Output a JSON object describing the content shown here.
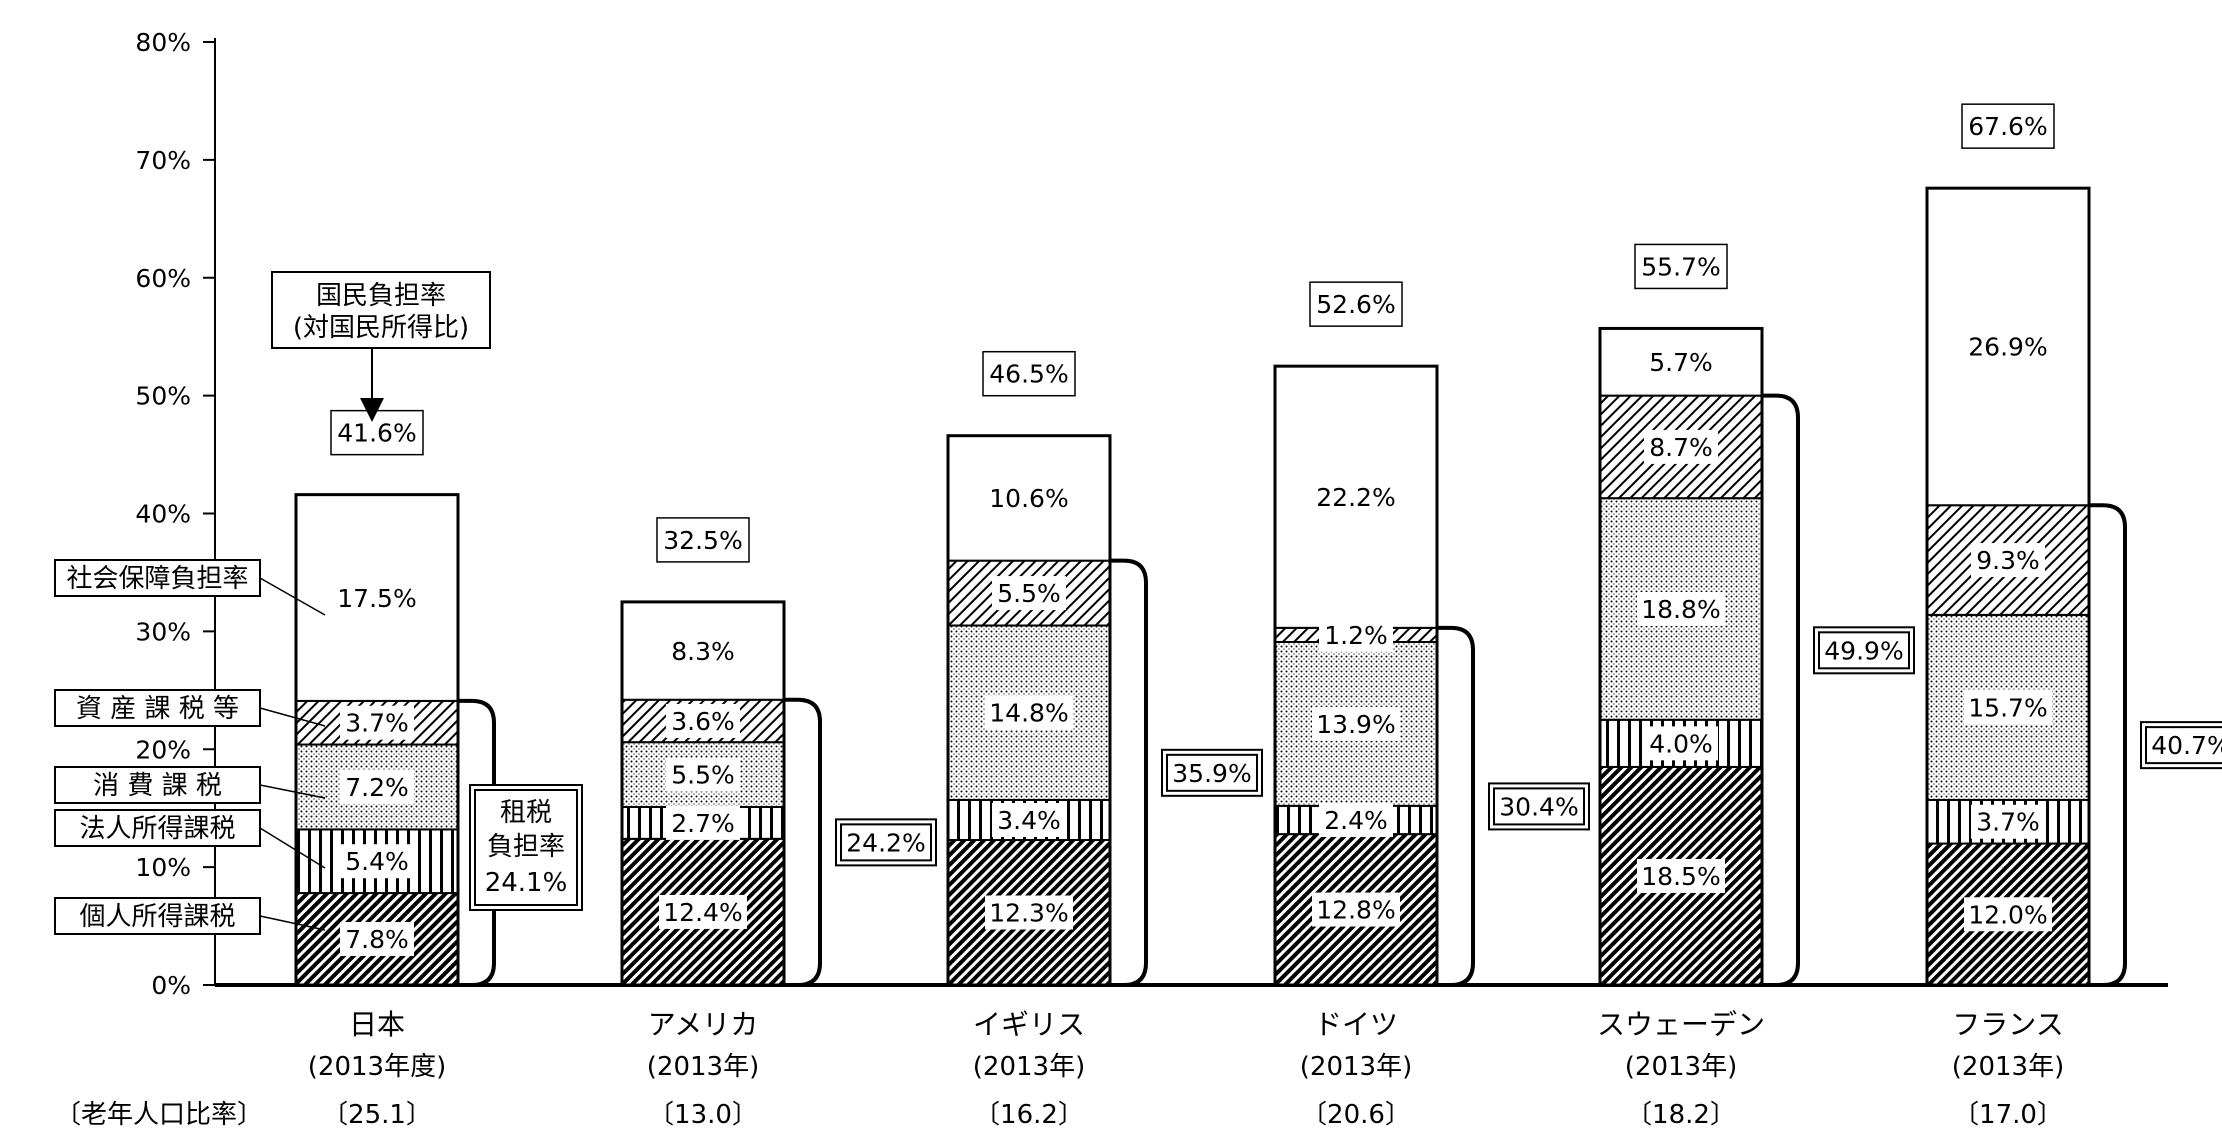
{
  "chart_data": {
    "type": "bar",
    "stacked": true,
    "ylim": [
      0,
      80
    ],
    "y_ticks": [
      "0%",
      "10%",
      "20%",
      "30%",
      "40%",
      "50%",
      "60%",
      "70%",
      "80%"
    ],
    "grid": false,
    "categories": [
      {
        "name": "日本",
        "year": "(2013年度)",
        "aged_ratio": "〔25.1〕",
        "total_label": "41.6%",
        "tax_label": "24.1%"
      },
      {
        "name": "アメリカ",
        "year": "(2013年)",
        "aged_ratio": "〔13.0〕",
        "total_label": "32.5%",
        "tax_label": "24.2%"
      },
      {
        "name": "イギリス",
        "year": "(2013年)",
        "aged_ratio": "〔16.2〕",
        "total_label": "46.5%",
        "tax_label": "35.9%"
      },
      {
        "name": "ドイツ",
        "year": "(2013年)",
        "aged_ratio": "〔20.6〕",
        "total_label": "52.6%",
        "tax_label": "30.4%"
      },
      {
        "name": "スウェーデン",
        "year": "(2013年)",
        "aged_ratio": "〔18.2〕",
        "total_label": "55.7%",
        "tax_label": "49.9%"
      },
      {
        "name": "フランス",
        "year": "(2013年)",
        "aged_ratio": "〔17.0〕",
        "total_label": "67.6%",
        "tax_label": "40.7%"
      }
    ],
    "series": [
      {
        "name": "個人所得課税",
        "values": [
          7.8,
          12.4,
          12.3,
          12.8,
          18.5,
          12.0
        ],
        "labels": [
          "7.8%",
          "12.4%",
          "12.3%",
          "12.8%",
          "18.5%",
          "12.0%"
        ]
      },
      {
        "name": "法人所得課税",
        "values": [
          5.4,
          2.7,
          3.4,
          2.4,
          4.0,
          3.7
        ],
        "labels": [
          "5.4%",
          "2.7%",
          "3.4%",
          "2.4%",
          "4.0%",
          "3.7%"
        ]
      },
      {
        "name": "消 費 課 税",
        "values": [
          7.2,
          5.5,
          14.8,
          13.9,
          18.8,
          15.7
        ],
        "labels": [
          "7.2%",
          "5.5%",
          "14.8%",
          "13.9%",
          "18.8%",
          "15.7%"
        ]
      },
      {
        "name": "資 産 課 税 等",
        "values": [
          3.7,
          3.6,
          5.5,
          1.2,
          8.7,
          9.3
        ],
        "labels": [
          "3.7%",
          "3.6%",
          "5.5%",
          "1.2%",
          "8.7%",
          "9.3%"
        ]
      },
      {
        "name": "社会保障負担率",
        "values": [
          17.5,
          8.3,
          10.6,
          22.2,
          5.7,
          26.9
        ],
        "labels": [
          "17.5%",
          "8.3%",
          "10.6%",
          "22.2%",
          "5.7%",
          "26.9%"
        ]
      }
    ],
    "annotations": {
      "national_burden_line1": "国民負担率",
      "national_burden_line2": "(対国民所得比)",
      "tax_burden_line1": "租税",
      "tax_burden_line2": "負担率",
      "tax_burden_value": "24.1%",
      "aged_ratio_label": "〔老年人口比率〕"
    },
    "colors": {
      "ink": "#000000",
      "paper": "#ffffff"
    }
  }
}
